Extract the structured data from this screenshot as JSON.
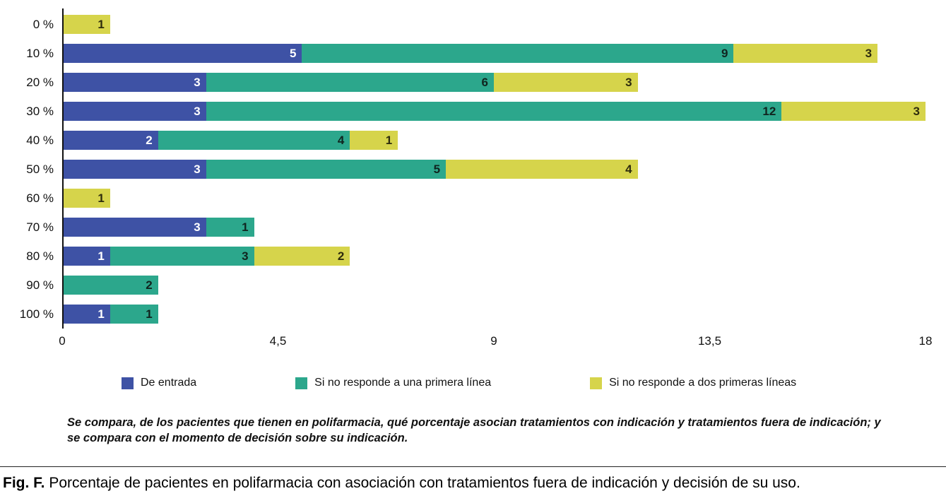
{
  "chart_data": {
    "type": "bar",
    "orientation": "horizontal",
    "stacked": true,
    "title": "",
    "xlabel": "",
    "ylabel": "",
    "categories": [
      "0 %",
      "10 %",
      "20 %",
      "30 %",
      "40 %",
      "50 %",
      "60 %",
      "70 %",
      "80 %",
      "90 %",
      "100 %"
    ],
    "series": [
      {
        "name": "De entrada",
        "color": "#3E52A5",
        "value_label_color": "#ffffff",
        "values": [
          0,
          5,
          3,
          3,
          2,
          3,
          0,
          3,
          1,
          0,
          1
        ]
      },
      {
        "name": "Si no responde a una primera línea",
        "color": "#2CA78C",
        "value_label_color": "#10241f",
        "values": [
          0,
          9,
          6,
          12,
          4,
          5,
          0,
          1,
          3,
          2,
          1
        ]
      },
      {
        "name": "Si no responde a dos primeras líneas",
        "color": "#D6D44B",
        "value_label_color": "#2e2c0d",
        "values": [
          1,
          3,
          3,
          3,
          1,
          4,
          1,
          0,
          2,
          0,
          0
        ]
      }
    ],
    "xlim": [
      0,
      18
    ],
    "x_ticks": [
      "0",
      "4,5",
      "9",
      "13,5",
      "18"
    ],
    "grid": false,
    "legend_position": "bottom"
  },
  "note": {
    "text": "Se compara, de los pacientes que tienen en polifarmacia, qué porcentaje asocian tratamientos con indicación y tratamientos fuera de indicación; y se compara con el momento de decisión sobre su indicación."
  },
  "caption": {
    "label": "Fig. F.",
    "text": "Porcentaje de pacientes en polifarmacia con asociación con tratamientos fuera de indicación y decisión de su uso."
  }
}
